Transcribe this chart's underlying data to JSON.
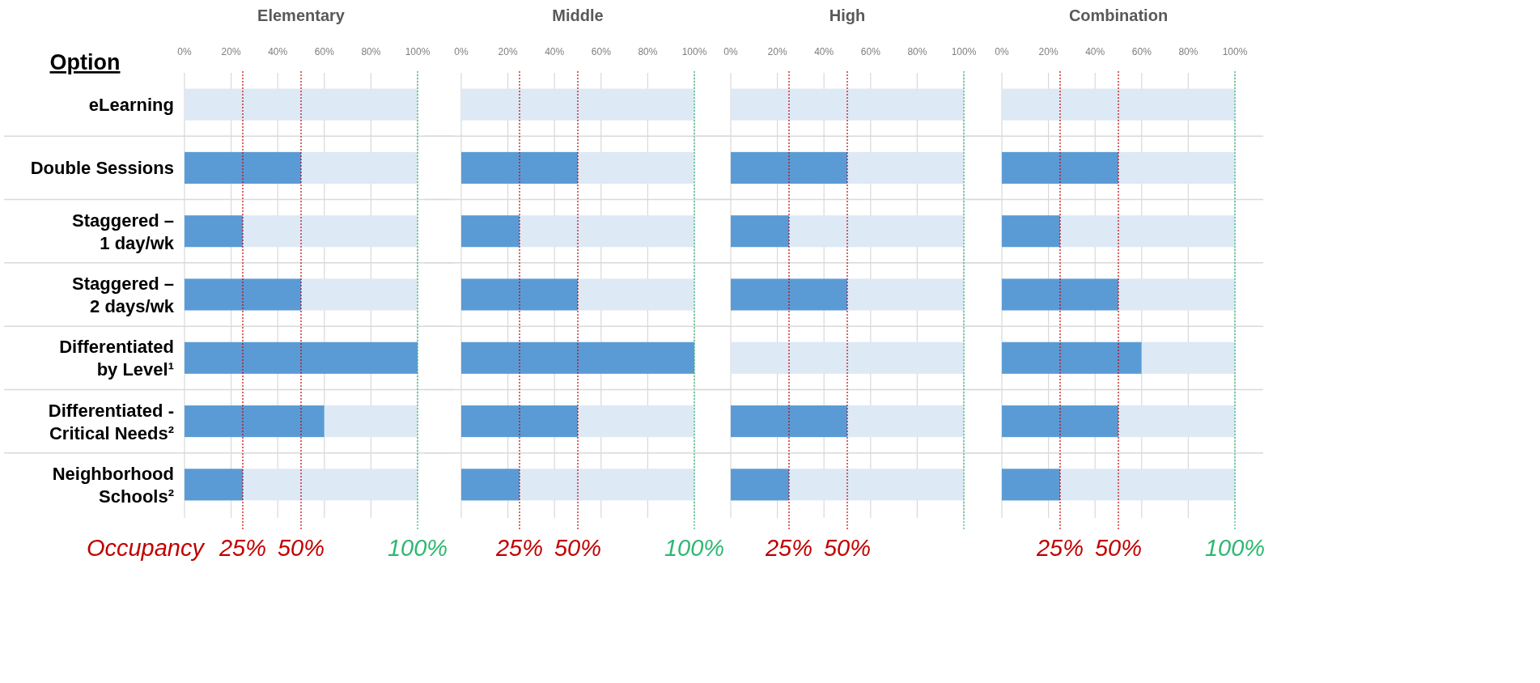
{
  "chart_data": [
    {
      "type": "bar",
      "title": "Elementary",
      "ylabel": "Option",
      "orientation": "horizontal",
      "stacked": true,
      "grid": true,
      "annotations": [
        "Occupancy"
      ],
      "categories": [
        "eLearning",
        "Double Sessions",
        "Staggered –\n1 day/wk",
        "Staggered –\n2 days/wk",
        "Differentiated\nby Level¹",
        "Differentiated -\nCritical Needs²",
        "Neighborhood\nSchools²"
      ],
      "series": [
        {
          "color": "#5b9bd5",
          "values": [
            0,
            50,
            25,
            50,
            100,
            60,
            25
          ]
        },
        {
          "color": "#dde9f5",
          "values": [
            100,
            50,
            75,
            50,
            0,
            40,
            75
          ]
        }
      ],
      "xlim": [
        0,
        100
      ],
      "xticks": [
        {
          "value": 0,
          "label": "0%"
        },
        {
          "value": 20,
          "label": "20%"
        },
        {
          "value": 40,
          "label": "40%"
        },
        {
          "value": 60,
          "label": "60%"
        },
        {
          "value": 80,
          "label": "80%"
        },
        {
          "value": 100,
          "label": "100%"
        }
      ],
      "ref_lines": [
        {
          "axis": "x",
          "value": 25,
          "label": "25%",
          "color": "#c00000",
          "line_style": "dotted"
        },
        {
          "axis": "x",
          "value": 50,
          "label": "50%",
          "color": "#c00000",
          "line_style": "dotted"
        },
        {
          "axis": "x",
          "value": 100,
          "label": "100%",
          "color": "#2eb872",
          "line_style": "dotted"
        }
      ]
    },
    {
      "type": "bar",
      "title": "Middle",
      "orientation": "horizontal",
      "stacked": true,
      "grid": true,
      "tick_labels": "x",
      "categories": [
        null,
        null,
        null,
        null,
        null,
        null,
        null
      ],
      "series": [
        {
          "color": "#5b9bd5",
          "values": [
            0,
            50,
            25,
            50,
            100,
            50,
            25
          ]
        },
        {
          "color": "#dde9f5",
          "values": [
            100,
            50,
            75,
            50,
            0,
            50,
            75
          ]
        }
      ],
      "xlim": [
        0,
        100
      ],
      "xticks": [
        {
          "value": 0,
          "label": "0%"
        },
        {
          "value": 20,
          "label": "20%"
        },
        {
          "value": 40,
          "label": "40%"
        },
        {
          "value": 60,
          "label": "60%"
        },
        {
          "value": 80,
          "label": "80%"
        },
        {
          "value": 100,
          "label": "100%"
        }
      ],
      "ref_lines": [
        {
          "axis": "x",
          "value": 25,
          "label": "25%",
          "color": "#c00000",
          "line_style": "dotted"
        },
        {
          "axis": "x",
          "value": 50,
          "label": "50%",
          "color": "#c00000",
          "line_style": "dotted"
        },
        {
          "axis": "x",
          "value": 100,
          "label": "100%",
          "color": "#2eb872",
          "line_style": "dotted"
        }
      ]
    },
    {
      "type": "bar",
      "title": "High",
      "orientation": "horizontal",
      "stacked": true,
      "grid": true,
      "tick_labels": "x",
      "categories": [
        null,
        null,
        null,
        null,
        null,
        null,
        null
      ],
      "series": [
        {
          "color": "#5b9bd5",
          "values": [
            0,
            50,
            25,
            50,
            0,
            50,
            25
          ]
        },
        {
          "color": "#dde9f5",
          "values": [
            100,
            50,
            75,
            50,
            100,
            50,
            75
          ]
        }
      ],
      "xlim": [
        0,
        100
      ],
      "xticks": [
        {
          "value": 0,
          "label": "0%"
        },
        {
          "value": 20,
          "label": "20%"
        },
        {
          "value": 40,
          "label": "40%"
        },
        {
          "value": 60,
          "label": "60%"
        },
        {
          "value": 80,
          "label": "80%"
        },
        {
          "value": 100,
          "label": "100%"
        }
      ],
      "ref_lines": [
        {
          "axis": "x",
          "value": 25,
          "label": "25%",
          "color": "#c00000",
          "line_style": "dotted"
        },
        {
          "axis": "x",
          "value": 50,
          "label": "50%",
          "color": "#c00000",
          "line_style": "dotted"
        },
        {
          "axis": "x",
          "value": 100,
          "label": null,
          "color": "#2eb872",
          "line_style": "dotted"
        }
      ]
    },
    {
      "type": "bar",
      "title": "Combination",
      "orientation": "horizontal",
      "stacked": true,
      "grid": true,
      "tick_labels": "x",
      "categories": [
        null,
        null,
        null,
        null,
        null,
        null,
        null
      ],
      "series": [
        {
          "color": "#5b9bd5",
          "values": [
            0,
            50,
            25,
            50,
            60,
            50,
            25
          ]
        },
        {
          "color": "#dde9f5",
          "values": [
            100,
            50,
            75,
            50,
            40,
            50,
            75
          ]
        }
      ],
      "xlim": [
        0,
        100
      ],
      "xticks": [
        {
          "value": 0,
          "label": "0%"
        },
        {
          "value": 20,
          "label": "20%"
        },
        {
          "value": 40,
          "label": "40%"
        },
        {
          "value": 60,
          "label": "60%"
        },
        {
          "value": 80,
          "label": "80%"
        },
        {
          "value": 100,
          "label": "100%"
        }
      ],
      "ref_lines": [
        {
          "axis": "x",
          "value": 25,
          "label": "25%",
          "color": "#c00000",
          "line_style": "dotted"
        },
        {
          "axis": "x",
          "value": 50,
          "label": "50%",
          "color": "#c00000",
          "line_style": "dotted"
        },
        {
          "axis": "x",
          "value": 100,
          "label": "100%",
          "color": "#2eb872",
          "line_style": "dotted"
        }
      ]
    }
  ]
}
